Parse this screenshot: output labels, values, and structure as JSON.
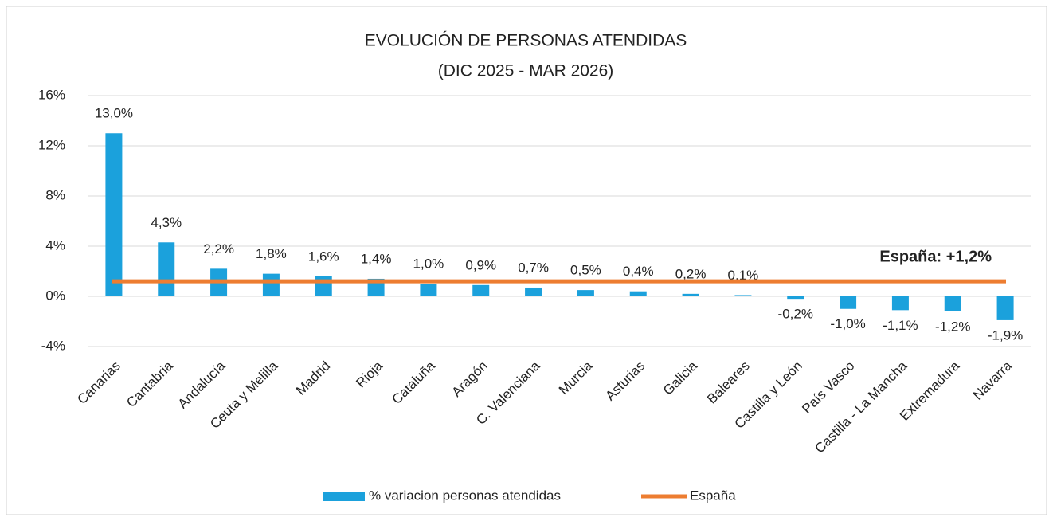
{
  "chart_data": {
    "type": "bar",
    "title": "EVOLUCIÓN DE PERSONAS ATENDIDAS",
    "subtitle": "(DIC 2025 - MAR 2026)",
    "categories": [
      "Canarias",
      "Cantabria",
      "Andalucía",
      "Ceuta y Melilla",
      "Madrid",
      "Rioja",
      "Cataluña",
      "Aragón",
      "C. Valenciana",
      "Murcia",
      "Asturias",
      "Galicia",
      "Baleares",
      "Castilla y León",
      "País Vasco",
      "Castilla - La Mancha",
      "Extremadura",
      "Navarra"
    ],
    "series": [
      {
        "name": "% variacion personas atendidas",
        "color": "#1ba1dc",
        "values": [
          13.0,
          4.3,
          2.2,
          1.8,
          1.6,
          1.4,
          1.0,
          0.9,
          0.7,
          0.5,
          0.4,
          0.2,
          0.1,
          -0.2,
          -1.0,
          -1.1,
          -1.2,
          -1.9
        ],
        "value_labels": [
          "13,0%",
          "4,3%",
          "2,2%",
          "1,8%",
          "1,6%",
          "1,4%",
          "1,0%",
          "0,9%",
          "0,7%",
          "0,5%",
          "0,4%",
          "0,2%",
          "0,1%",
          "-0,2%",
          "-1,0%",
          "-1,1%",
          "-1,2%",
          "-1,9%"
        ]
      }
    ],
    "reference_line": {
      "name": "España",
      "value": 1.2,
      "label": "España: +1,2%",
      "color": "#ed7d31"
    },
    "ylim": [
      -4,
      16
    ],
    "yticks": [
      {
        "value": -4,
        "label": "-4%"
      },
      {
        "value": 0,
        "label": "0%"
      },
      {
        "value": 4,
        "label": "4%"
      },
      {
        "value": 8,
        "label": "8%"
      },
      {
        "value": 12,
        "label": "12%"
      },
      {
        "value": 16,
        "label": "16%"
      }
    ],
    "grid": true
  }
}
